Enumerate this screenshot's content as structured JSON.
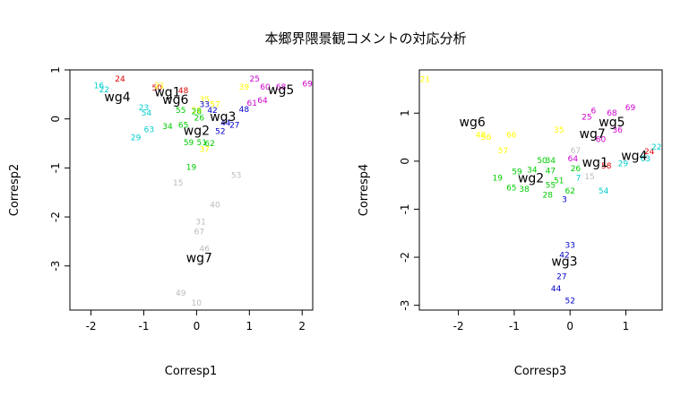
{
  "title": "本郷界隈景観コメントの対応分析",
  "chart_data": [
    {
      "type": "scatter",
      "xlabel": "Corresp1",
      "ylabel": "Corresp2",
      "xlim": [
        -2.4,
        2.2
      ],
      "ylim": [
        -3.9,
        1.0
      ],
      "xticks": [
        -2,
        -1,
        0,
        1,
        2
      ],
      "yticks": [
        -3,
        -2,
        -1,
        0,
        1
      ],
      "groups": [
        {
          "label": "wg4",
          "x": -1.5,
          "y": 0.45
        },
        {
          "label": "wg1",
          "x": -0.55,
          "y": 0.55
        },
        {
          "label": "wg6",
          "x": -0.4,
          "y": 0.4
        },
        {
          "label": "wg5",
          "x": 1.6,
          "y": 0.6
        },
        {
          "label": "wg3",
          "x": 0.5,
          "y": 0.05
        },
        {
          "label": "wg2",
          "x": 0.0,
          "y": -0.23
        },
        {
          "label": "wg7",
          "x": 0.05,
          "y": -2.83
        }
      ],
      "points": [
        {
          "label": "24",
          "x": -1.45,
          "y": 0.82,
          "color": "#e00000"
        },
        {
          "label": "16",
          "x": -1.85,
          "y": 0.68,
          "color": "#00cccc"
        },
        {
          "label": "22",
          "x": -1.75,
          "y": 0.6,
          "color": "#00cccc"
        },
        {
          "label": "23",
          "x": -1.0,
          "y": 0.23,
          "color": "#00cccc"
        },
        {
          "label": "54",
          "x": -0.95,
          "y": 0.12,
          "color": "#00cccc"
        },
        {
          "label": "63",
          "x": -0.9,
          "y": -0.22,
          "color": "#00cccc"
        },
        {
          "label": "29",
          "x": -1.15,
          "y": -0.38,
          "color": "#00cccc"
        },
        {
          "label": "50",
          "x": -0.75,
          "y": 0.63,
          "color": "#e00000"
        },
        {
          "label": "48",
          "x": -0.25,
          "y": 0.58,
          "color": "#e00000"
        },
        {
          "label": "21",
          "x": -0.7,
          "y": 0.68,
          "color": "#ffff00"
        },
        {
          "label": "35",
          "x": 0.15,
          "y": 0.4,
          "color": "#ffff00"
        },
        {
          "label": "57",
          "x": 0.35,
          "y": 0.3,
          "color": "#ffff00"
        },
        {
          "label": "56",
          "x": 0.0,
          "y": 0.18,
          "color": "#ffff00"
        },
        {
          "label": "37",
          "x": 0.15,
          "y": -0.62,
          "color": "#ffff00"
        },
        {
          "label": "39",
          "x": 0.9,
          "y": 0.65,
          "color": "#ffff00"
        },
        {
          "label": "34",
          "x": -0.55,
          "y": -0.15,
          "color": "#00cc00"
        },
        {
          "label": "65",
          "x": -0.25,
          "y": -0.12,
          "color": "#00cc00"
        },
        {
          "label": "55",
          "x": -0.3,
          "y": 0.18,
          "color": "#00cc00"
        },
        {
          "label": "28",
          "x": 0.0,
          "y": 0.15,
          "color": "#00cc00"
        },
        {
          "label": "26",
          "x": 0.05,
          "y": 0.02,
          "color": "#00cc00"
        },
        {
          "label": "59",
          "x": -0.15,
          "y": -0.48,
          "color": "#00cc00"
        },
        {
          "label": "51",
          "x": 0.1,
          "y": -0.48,
          "color": "#00cc00"
        },
        {
          "label": "62",
          "x": 0.25,
          "y": -0.5,
          "color": "#00cc00"
        },
        {
          "label": "19",
          "x": -0.1,
          "y": -0.98,
          "color": "#00cc00"
        },
        {
          "label": "33",
          "x": 0.15,
          "y": 0.3,
          "color": "#0000cc"
        },
        {
          "label": "42",
          "x": 0.3,
          "y": 0.18,
          "color": "#0000cc"
        },
        {
          "label": "48",
          "x": 0.9,
          "y": 0.2,
          "color": "#0000cc"
        },
        {
          "label": "52",
          "x": 0.45,
          "y": -0.25,
          "color": "#0000cc"
        },
        {
          "label": "44",
          "x": 0.55,
          "y": -0.08,
          "color": "#0000cc"
        },
        {
          "label": "27",
          "x": 0.72,
          "y": -0.12,
          "color": "#0000cc"
        },
        {
          "label": "25",
          "x": 1.1,
          "y": 0.82,
          "color": "#cc00cc"
        },
        {
          "label": "60",
          "x": 1.3,
          "y": 0.65,
          "color": "#cc00cc"
        },
        {
          "label": "61",
          "x": 1.05,
          "y": 0.32,
          "color": "#cc00cc"
        },
        {
          "label": "64",
          "x": 1.25,
          "y": 0.38,
          "color": "#cc00cc"
        },
        {
          "label": "69",
          "x": 2.1,
          "y": 0.72,
          "color": "#cc00cc"
        },
        {
          "label": "68",
          "x": 1.6,
          "y": 0.65,
          "color": "#cc00cc"
        },
        {
          "label": "15",
          "x": -0.35,
          "y": -1.3,
          "color": "#bbbbbb"
        },
        {
          "label": "53",
          "x": 0.75,
          "y": -1.15,
          "color": "#bbbbbb"
        },
        {
          "label": "40",
          "x": 0.35,
          "y": -1.75,
          "color": "#bbbbbb"
        },
        {
          "label": "31",
          "x": 0.08,
          "y": -2.1,
          "color": "#bbbbbb"
        },
        {
          "label": "67",
          "x": 0.05,
          "y": -2.3,
          "color": "#bbbbbb"
        },
        {
          "label": "46",
          "x": 0.15,
          "y": -2.65,
          "color": "#bbbbbb"
        },
        {
          "label": "49",
          "x": -0.3,
          "y": -3.55,
          "color": "#bbbbbb"
        },
        {
          "label": "10",
          "x": 0.0,
          "y": -3.75,
          "color": "#bbbbbb"
        }
      ]
    },
    {
      "type": "scatter",
      "xlabel": "Corresp3",
      "ylabel": "Corresp4",
      "xlim": [
        -2.7,
        1.65
      ],
      "ylim": [
        -3.1,
        1.9
      ],
      "xticks": [
        -2,
        -1,
        0,
        1
      ],
      "yticks": [
        -3,
        -2,
        -1,
        0,
        1
      ],
      "groups": [
        {
          "label": "wg6",
          "x": -1.75,
          "y": 0.82
        },
        {
          "label": "wg7",
          "x": 0.4,
          "y": 0.58
        },
        {
          "label": "wg5",
          "x": 0.75,
          "y": 0.82
        },
        {
          "label": "wg1",
          "x": 0.45,
          "y": -0.02
        },
        {
          "label": "wg4",
          "x": 1.15,
          "y": 0.12
        },
        {
          "label": "wg2",
          "x": -0.7,
          "y": -0.35
        },
        {
          "label": "wg3",
          "x": -0.1,
          "y": -2.08
        }
      ],
      "points": [
        {
          "label": "21",
          "x": -2.6,
          "y": 1.7,
          "color": "#ffff00"
        },
        {
          "label": "48",
          "x": -1.6,
          "y": 0.55,
          "color": "#ffff00"
        },
        {
          "label": "56",
          "x": -1.5,
          "y": 0.5,
          "color": "#ffff00"
        },
        {
          "label": "66",
          "x": -1.05,
          "y": 0.55,
          "color": "#ffff00"
        },
        {
          "label": "57",
          "x": -1.2,
          "y": 0.22,
          "color": "#ffff00"
        },
        {
          "label": "35",
          "x": -0.2,
          "y": 0.65,
          "color": "#ffff00"
        },
        {
          "label": "19",
          "x": -1.3,
          "y": -0.35,
          "color": "#00cc00"
        },
        {
          "label": "59",
          "x": -0.95,
          "y": -0.22,
          "color": "#00cc00"
        },
        {
          "label": "34",
          "x": -0.68,
          "y": -0.18,
          "color": "#00cc00"
        },
        {
          "label": "50",
          "x": -0.5,
          "y": 0.02,
          "color": "#00cc00"
        },
        {
          "label": "34",
          "x": -0.35,
          "y": 0.02,
          "color": "#00cc00"
        },
        {
          "label": "47",
          "x": -0.35,
          "y": -0.2,
          "color": "#00cc00"
        },
        {
          "label": "65",
          "x": -1.05,
          "y": -0.55,
          "color": "#00cc00"
        },
        {
          "label": "38",
          "x": -0.82,
          "y": -0.58,
          "color": "#00cc00"
        },
        {
          "label": "55",
          "x": -0.35,
          "y": -0.5,
          "color": "#00cc00"
        },
        {
          "label": "51",
          "x": -0.2,
          "y": -0.4,
          "color": "#00cc00"
        },
        {
          "label": "28",
          "x": -0.4,
          "y": -0.7,
          "color": "#00cc00"
        },
        {
          "label": "26",
          "x": 0.1,
          "y": -0.15,
          "color": "#00cc00"
        },
        {
          "label": "62",
          "x": 0.0,
          "y": -0.62,
          "color": "#00cc00"
        },
        {
          "label": "6",
          "x": 0.42,
          "y": 1.05,
          "color": "#cc00cc"
        },
        {
          "label": "25",
          "x": 0.3,
          "y": 0.92,
          "color": "#cc00cc"
        },
        {
          "label": "68",
          "x": 0.75,
          "y": 1.0,
          "color": "#cc00cc"
        },
        {
          "label": "69",
          "x": 1.08,
          "y": 1.12,
          "color": "#cc00cc"
        },
        {
          "label": "36",
          "x": 0.85,
          "y": 0.65,
          "color": "#cc00cc"
        },
        {
          "label": "60",
          "x": 0.55,
          "y": 0.45,
          "color": "#cc00cc"
        },
        {
          "label": "64",
          "x": 0.05,
          "y": 0.05,
          "color": "#cc00cc"
        },
        {
          "label": "58",
          "x": 0.65,
          "y": -0.1,
          "color": "#e00000"
        },
        {
          "label": "24",
          "x": 1.42,
          "y": 0.2,
          "color": "#e00000"
        },
        {
          "label": "67",
          "x": 0.1,
          "y": 0.22,
          "color": "#bbbbbb"
        },
        {
          "label": "15",
          "x": 0.35,
          "y": -0.32,
          "color": "#bbbbbb"
        },
        {
          "label": "7",
          "x": 0.15,
          "y": -0.35,
          "color": "#00cccc"
        },
        {
          "label": "54",
          "x": 0.6,
          "y": -0.62,
          "color": "#00cccc"
        },
        {
          "label": "29",
          "x": 0.95,
          "y": -0.05,
          "color": "#00cccc"
        },
        {
          "label": "22",
          "x": 1.55,
          "y": 0.3,
          "color": "#00cccc"
        },
        {
          "label": "63",
          "x": 1.35,
          "y": 0.05,
          "color": "#00cccc"
        },
        {
          "label": "3",
          "x": -0.1,
          "y": -0.8,
          "color": "#0000cc"
        },
        {
          "label": "33",
          "x": 0.0,
          "y": -1.75,
          "color": "#0000cc"
        },
        {
          "label": "42",
          "x": -0.1,
          "y": -1.95,
          "color": "#0000cc"
        },
        {
          "label": "27",
          "x": -0.15,
          "y": -2.4,
          "color": "#0000cc"
        },
        {
          "label": "44",
          "x": -0.25,
          "y": -2.65,
          "color": "#0000cc"
        },
        {
          "label": "52",
          "x": 0.0,
          "y": -2.9,
          "color": "#0000cc"
        }
      ]
    }
  ]
}
